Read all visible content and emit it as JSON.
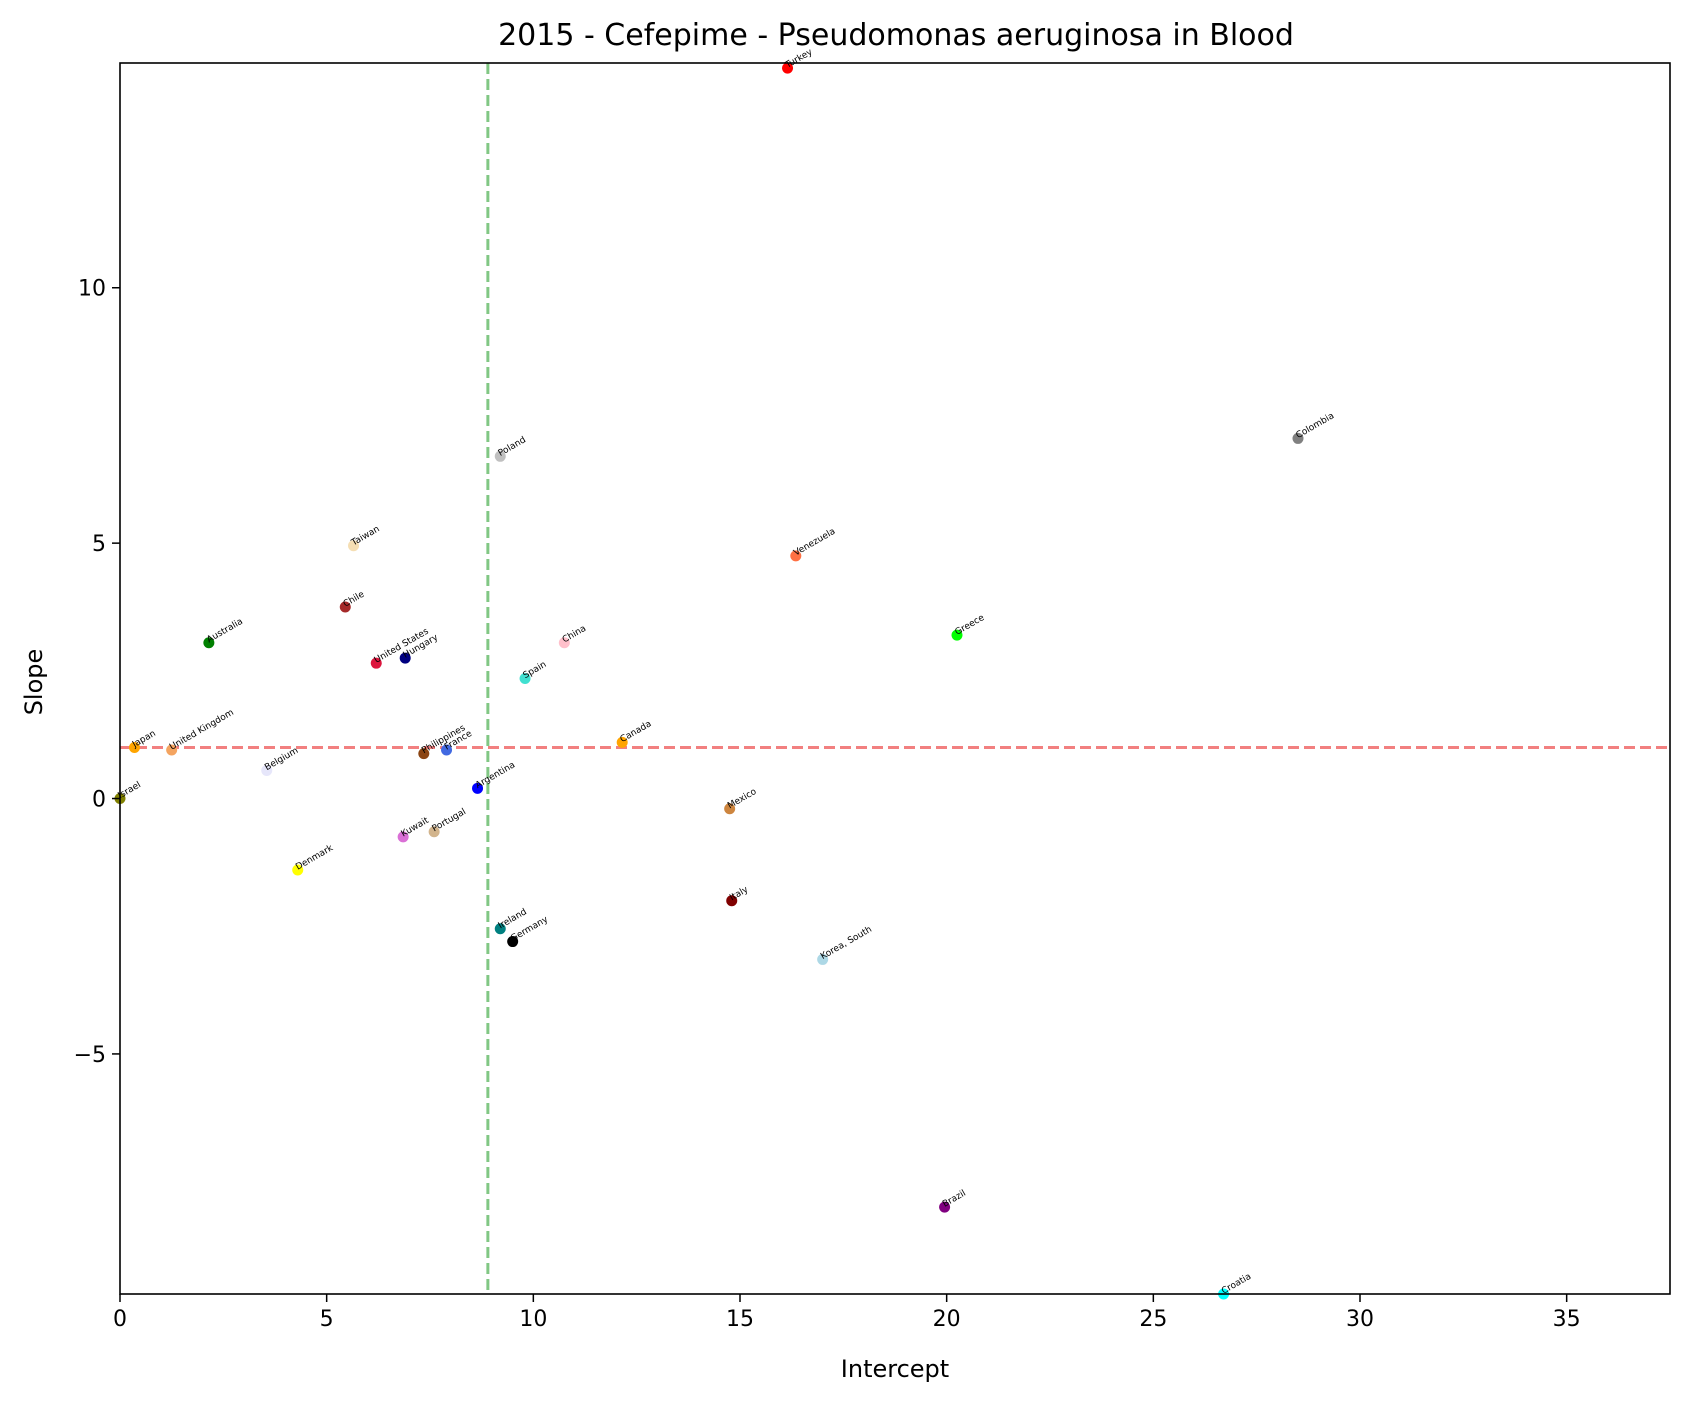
{
  "chart_data": {
    "type": "scatter",
    "title": "2015 - Cefepime - Pseudomonas aeruginosa in Blood",
    "xlabel": "Intercept",
    "ylabel": "Slope",
    "xlim": [
      0,
      37.5
    ],
    "ylim": [
      -9.7,
      14.4
    ],
    "xticks": [
      0,
      5,
      10,
      15,
      20,
      25,
      30,
      35
    ],
    "yticks": [
      -5,
      0,
      5,
      10
    ],
    "ytick_labels": [
      "−5",
      "0",
      "5",
      "10"
    ],
    "grid": false,
    "reference_lines": {
      "vertical": {
        "x": 8.9,
        "color": "#81c784",
        "style": "dashed"
      },
      "horizontal": {
        "y": 1.0,
        "color": "#f28080",
        "style": "dashed"
      }
    },
    "points": [
      {
        "label": "Turkey",
        "x": 16.15,
        "y": 14.3,
        "color": "#ff0000"
      },
      {
        "label": "Colombia",
        "x": 28.5,
        "y": 7.05,
        "color": "#808080"
      },
      {
        "label": "Poland",
        "x": 9.2,
        "y": 6.7,
        "color": "#c0c0c0"
      },
      {
        "label": "Taiwan",
        "x": 5.65,
        "y": 4.95,
        "color": "#f5deb3"
      },
      {
        "label": "Venezuela",
        "x": 16.35,
        "y": 4.75,
        "color": "#ff7043"
      },
      {
        "label": "Chile",
        "x": 5.45,
        "y": 3.75,
        "color": "#a52a2a"
      },
      {
        "label": "Greece",
        "x": 20.25,
        "y": 3.2,
        "color": "#00ff00"
      },
      {
        "label": "Australia",
        "x": 2.15,
        "y": 3.05,
        "color": "#008000"
      },
      {
        "label": "China",
        "x": 10.75,
        "y": 3.05,
        "color": "#ffc0cb"
      },
      {
        "label": "United States",
        "x": 6.2,
        "y": 2.65,
        "color": "#dc143c"
      },
      {
        "label": "Hungary",
        "x": 6.9,
        "y": 2.75,
        "color": "#000080"
      },
      {
        "label": "Spain",
        "x": 9.8,
        "y": 2.35,
        "color": "#40e0d0"
      },
      {
        "label": "Canada",
        "x": 12.15,
        "y": 1.1,
        "color": "#ffa500"
      },
      {
        "label": "Japan",
        "x": 0.35,
        "y": 1.0,
        "color": "#ffa500"
      },
      {
        "label": "United Kingdom",
        "x": 1.25,
        "y": 0.95,
        "color": "#f4a460"
      },
      {
        "label": "Philippines",
        "x": 7.35,
        "y": 0.88,
        "color": "#8b4513"
      },
      {
        "label": "France",
        "x": 7.9,
        "y": 0.95,
        "color": "#4169e1"
      },
      {
        "label": "Belgium",
        "x": 3.55,
        "y": 0.55,
        "color": "#e6e6fa"
      },
      {
        "label": "Argentina",
        "x": 8.65,
        "y": 0.2,
        "color": "#0000ff"
      },
      {
        "label": "Israel",
        "x": 0.0,
        "y": 0.0,
        "color": "#808000"
      },
      {
        "label": "Mexico",
        "x": 14.75,
        "y": -0.2,
        "color": "#cd853f"
      },
      {
        "label": "Kuwait",
        "x": 6.85,
        "y": -0.75,
        "color": "#da70d6"
      },
      {
        "label": "Portugal",
        "x": 7.6,
        "y": -0.65,
        "color": "#d2b48c"
      },
      {
        "label": "Denmark",
        "x": 4.3,
        "y": -1.4,
        "color": "#ffff00"
      },
      {
        "label": "Italy",
        "x": 14.8,
        "y": -2.0,
        "color": "#800000"
      },
      {
        "label": "Ireland",
        "x": 9.2,
        "y": -2.55,
        "color": "#008080"
      },
      {
        "label": "Germany",
        "x": 9.5,
        "y": -2.8,
        "color": "#000000"
      },
      {
        "label": "Korea, South",
        "x": 17.0,
        "y": -3.15,
        "color": "#add8e6"
      },
      {
        "label": "Brazil",
        "x": 19.95,
        "y": -8.0,
        "color": "#800080"
      },
      {
        "label": "Croatia",
        "x": 26.7,
        "y": -9.7,
        "color": "#00ffff"
      }
    ]
  }
}
